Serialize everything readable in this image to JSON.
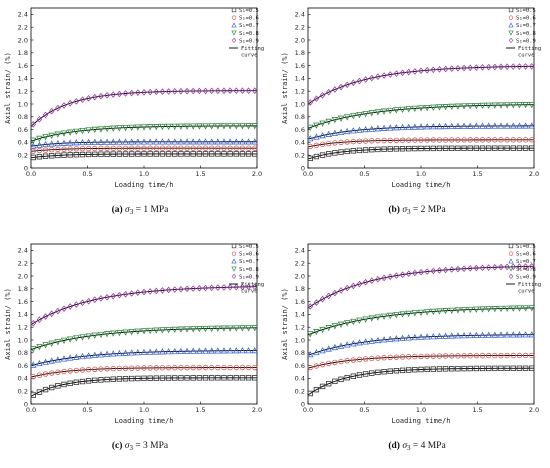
{
  "chart_data": [
    {
      "type": "scatter",
      "caption": {
        "label": "(a)",
        "sigma": "σ",
        "sub": "3",
        "value": "= 1 MPa"
      },
      "xlabel": "Loading time/h",
      "ylabel": "Axial strain/ (%)",
      "xlim": [
        0,
        2.0
      ],
      "ylim": [
        0,
        2.5
      ],
      "xticks": [
        "0.0",
        "0.5",
        "1.0",
        "1.5",
        "2.0"
      ],
      "yticks": [
        "0",
        "0.2",
        "0.4",
        "0.6",
        "0.8",
        "1.0",
        "1.2",
        "1.4",
        "1.6",
        "1.8",
        "2.0",
        "2.2",
        "2.4"
      ],
      "legend": {
        "position": "top-right",
        "fit_label": [
          "Fitting",
          "curve"
        ]
      },
      "series": [
        {
          "name": "S₁=0.5",
          "marker": "square",
          "color": "#333333",
          "start": 0.16,
          "end": 0.22,
          "k": 4.0
        },
        {
          "name": "S₁=0.6",
          "marker": "circle",
          "color": "#d9534f",
          "start": 0.26,
          "end": 0.31,
          "k": 4.0
        },
        {
          "name": "S₁=0.7",
          "marker": "triangle-up",
          "color": "#3a66d6",
          "start": 0.34,
          "end": 0.41,
          "k": 4.0
        },
        {
          "name": "S₁=0.8",
          "marker": "triangle-down",
          "color": "#2e8b3e",
          "start": 0.42,
          "end": 0.66,
          "k": 2.5
        },
        {
          "name": "S₁=0.9",
          "marker": "diamond",
          "color": "#9c3aa6",
          "start": 0.65,
          "end": 1.21,
          "k": 3.0
        }
      ]
    },
    {
      "type": "scatter",
      "caption": {
        "label": "(b)",
        "sigma": "σ",
        "sub": "3",
        "value": "= 2 MPa"
      },
      "xlabel": "Loading time/h",
      "ylabel": "Axial strain/ (%)",
      "xlim": [
        0,
        2.0
      ],
      "ylim": [
        0,
        2.5
      ],
      "xticks": [
        "0.0",
        "0.5",
        "1.0",
        "1.5",
        "2.0"
      ],
      "yticks": [
        "0",
        "0.2",
        "0.4",
        "0.6",
        "0.8",
        "1.0",
        "1.2",
        "1.4",
        "1.6",
        "1.8",
        "2.0",
        "2.2",
        "2.4"
      ],
      "legend": {
        "position": "top-right",
        "fit_label": [
          "Fitting",
          "curve"
        ]
      },
      "series": [
        {
          "name": "S₁=0.5",
          "marker": "square",
          "color": "#333333",
          "start": 0.14,
          "end": 0.31,
          "k": 3.5
        },
        {
          "name": "S₁=0.6",
          "marker": "circle",
          "color": "#d9534f",
          "start": 0.33,
          "end": 0.44,
          "k": 3.5
        },
        {
          "name": "S₁=0.7",
          "marker": "triangle-up",
          "color": "#3a66d6",
          "start": 0.45,
          "end": 0.66,
          "k": 2.5
        },
        {
          "name": "S₁=0.8",
          "marker": "triangle-down",
          "color": "#2e8b3e",
          "start": 0.62,
          "end": 1.0,
          "k": 1.8
        },
        {
          "name": "S₁=0.9",
          "marker": "diamond",
          "color": "#9c3aa6",
          "start": 1.0,
          "end": 1.6,
          "k": 2.0
        }
      ]
    },
    {
      "type": "scatter",
      "caption": {
        "label": "(c)",
        "sigma": "σ",
        "sub": "3",
        "value": "= 3 MPa"
      },
      "xlabel": "Loading time/h",
      "ylabel": "Axial strain/ (%)",
      "xlim": [
        0,
        2.0
      ],
      "ylim": [
        0,
        2.5
      ],
      "xticks": [
        "0.0",
        "0.5",
        "1.0",
        "1.5",
        "2.0"
      ],
      "yticks": [
        "0",
        "0.2",
        "0.4",
        "0.6",
        "0.8",
        "1.0",
        "1.2",
        "1.4",
        "1.6",
        "1.8",
        "2.0",
        "2.2",
        "2.4"
      ],
      "legend": {
        "position": "top-right",
        "fit_label": [
          "Fitting",
          "curve"
        ]
      },
      "series": [
        {
          "name": "S₁=0.5",
          "marker": "square",
          "color": "#333333",
          "start": 0.12,
          "end": 0.41,
          "k": 3.5
        },
        {
          "name": "S₁=0.6",
          "marker": "circle",
          "color": "#d9534f",
          "start": 0.42,
          "end": 0.57,
          "k": 3.0
        },
        {
          "name": "S₁=0.7",
          "marker": "triangle-up",
          "color": "#3a66d6",
          "start": 0.6,
          "end": 0.84,
          "k": 2.0
        },
        {
          "name": "S₁=0.8",
          "marker": "triangle-down",
          "color": "#2e8b3e",
          "start": 0.85,
          "end": 1.2,
          "k": 1.8
        },
        {
          "name": "S₁=0.9",
          "marker": "diamond",
          "color": "#9c3aa6",
          "start": 1.24,
          "end": 1.85,
          "k": 1.8
        }
      ]
    },
    {
      "type": "scatter",
      "caption": {
        "label": "(d)",
        "sigma": "σ",
        "sub": "3",
        "value": "= 4 MPa"
      },
      "xlabel": "Loading time/h",
      "ylabel": "Axial strain/ (%)",
      "xlim": [
        0,
        2.0
      ],
      "ylim": [
        0,
        2.5
      ],
      "xticks": [
        "0.0",
        "0.5",
        "1.0",
        "1.5",
        "2.0"
      ],
      "yticks": [
        "0",
        "0.2",
        "0.4",
        "0.6",
        "0.8",
        "1.0",
        "1.2",
        "1.4",
        "1.6",
        "1.8",
        "2.0",
        "2.2",
        "2.4"
      ],
      "legend": {
        "position": "top-right",
        "fit_label": [
          "Fitting",
          "curve"
        ]
      },
      "series": [
        {
          "name": "S₁=0.5",
          "marker": "square",
          "color": "#333333",
          "start": 0.14,
          "end": 0.56,
          "k": 3.0
        },
        {
          "name": "S₁=0.6",
          "marker": "circle",
          "color": "#d9534f",
          "start": 0.56,
          "end": 0.76,
          "k": 2.5
        },
        {
          "name": "S₁=0.7",
          "marker": "triangle-up",
          "color": "#3a66d6",
          "start": 0.76,
          "end": 1.09,
          "k": 2.0
        },
        {
          "name": "S₁=0.8",
          "marker": "triangle-down",
          "color": "#2e8b3e",
          "start": 1.08,
          "end": 1.52,
          "k": 1.6
        },
        {
          "name": "S₁=0.9",
          "marker": "diamond",
          "color": "#9c3aa6",
          "start": 1.5,
          "end": 2.17,
          "k": 1.8
        }
      ]
    }
  ]
}
